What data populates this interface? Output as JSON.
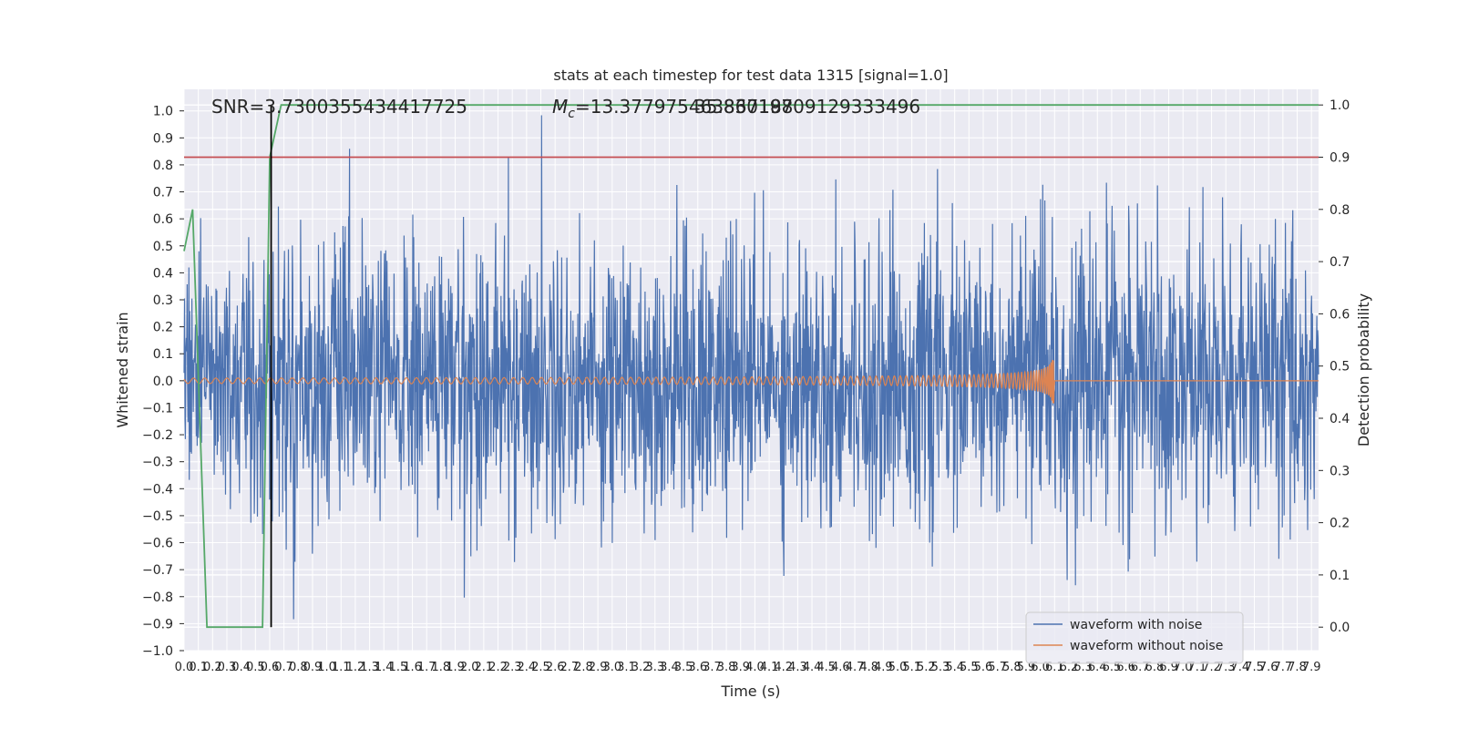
{
  "chart_data": {
    "type": "line",
    "title": "stats at each timestep for test data 1315 [signal=1.0]",
    "xlabel": "Time (s)",
    "ylabel": "Whitened strain",
    "ylabel_right": "Detection probability",
    "xlim": [
      0,
      7.95
    ],
    "ylim": [
      -1.0,
      1.08
    ],
    "ylim_right": [
      -0.045,
      1.03
    ],
    "x_ticks": [
      "0.0",
      "0.1",
      "0.2",
      "0.3",
      "0.4",
      "0.5",
      "0.6",
      "0.7",
      "0.8",
      "0.9",
      "1.0",
      "1.1",
      "1.2",
      "1.3",
      "1.4",
      "1.5",
      "1.6",
      "1.7",
      "1.8",
      "1.9",
      "2.0",
      "2.1",
      "2.2",
      "2.3",
      "2.4",
      "2.5",
      "2.6",
      "2.7",
      "2.8",
      "2.9",
      "3.0",
      "3.1",
      "3.2",
      "3.3",
      "3.4",
      "3.5",
      "3.6",
      "3.7",
      "3.8",
      "3.9",
      "4.0",
      "4.1",
      "4.2",
      "4.3",
      "4.4",
      "4.5",
      "4.6",
      "4.7",
      "4.8",
      "4.9",
      "5.0",
      "5.1",
      "5.2",
      "5.3",
      "5.4",
      "5.5",
      "5.6",
      "5.7",
      "5.8",
      "5.9",
      "6.0",
      "6.1",
      "6.2",
      "6.3",
      "6.4",
      "6.5",
      "6.6",
      "6.7",
      "6.8",
      "6.9",
      "7.0",
      "7.1",
      "7.2",
      "7.3",
      "7.4",
      "7.5",
      "7.6",
      "7.7",
      "7.8",
      "7.9"
    ],
    "y_ticks_left": [
      "1.0",
      "0.9",
      "0.8",
      "0.7",
      "0.6",
      "0.5",
      "0.4",
      "0.3",
      "0.2",
      "0.1",
      "0.0",
      "−0.1",
      "−0.2",
      "−0.3",
      "−0.4",
      "−0.5",
      "−0.6",
      "−0.7",
      "−0.8",
      "−0.9",
      "−1.0"
    ],
    "y_ticks_right": [
      "1.0",
      "0.9",
      "0.8",
      "0.7",
      "0.6",
      "0.5",
      "0.4",
      "0.3",
      "0.2",
      "0.1",
      "0.0"
    ],
    "annotations": {
      "snr": "SNR=3.7300355434417725",
      "mc_prefix": "M",
      "mc_sub": "c",
      "mc_value": "=13.377975463867188",
      "mc_overlap": "35.83019709129333496"
    },
    "series": [
      {
        "name": "waveform with noise",
        "color": "#4c72b0",
        "axis": "left",
        "noise_envelope": [
          -1.0,
          1.0
        ]
      },
      {
        "name": "waveform without noise",
        "color": "#dd8452",
        "axis": "left",
        "chirp_start": 0.0,
        "chirp_end": 6.1,
        "amplitude_start": 0.01,
        "amplitude_peak": 0.14
      },
      {
        "color": "#55a868",
        "axis": "right",
        "x": [
          0.0,
          0.06,
          0.16,
          0.18,
          0.25,
          0.35,
          0.45,
          0.55,
          0.6,
          0.68,
          1.0,
          7.95
        ],
        "y": [
          0.72,
          0.8,
          0.0,
          0.0,
          0.0,
          0.0,
          0.0,
          0.0,
          0.9,
          1.0,
          1.0,
          1.0
        ]
      },
      {
        "color": "#c44e52",
        "axis": "right",
        "x": [
          0.0,
          7.95
        ],
        "y": [
          0.9,
          0.9
        ]
      }
    ],
    "vertical_marker": {
      "x": 0.61,
      "color": "#000000"
    },
    "grid": true,
    "legend_position": "lower-right",
    "background": "#eaeaf2"
  }
}
